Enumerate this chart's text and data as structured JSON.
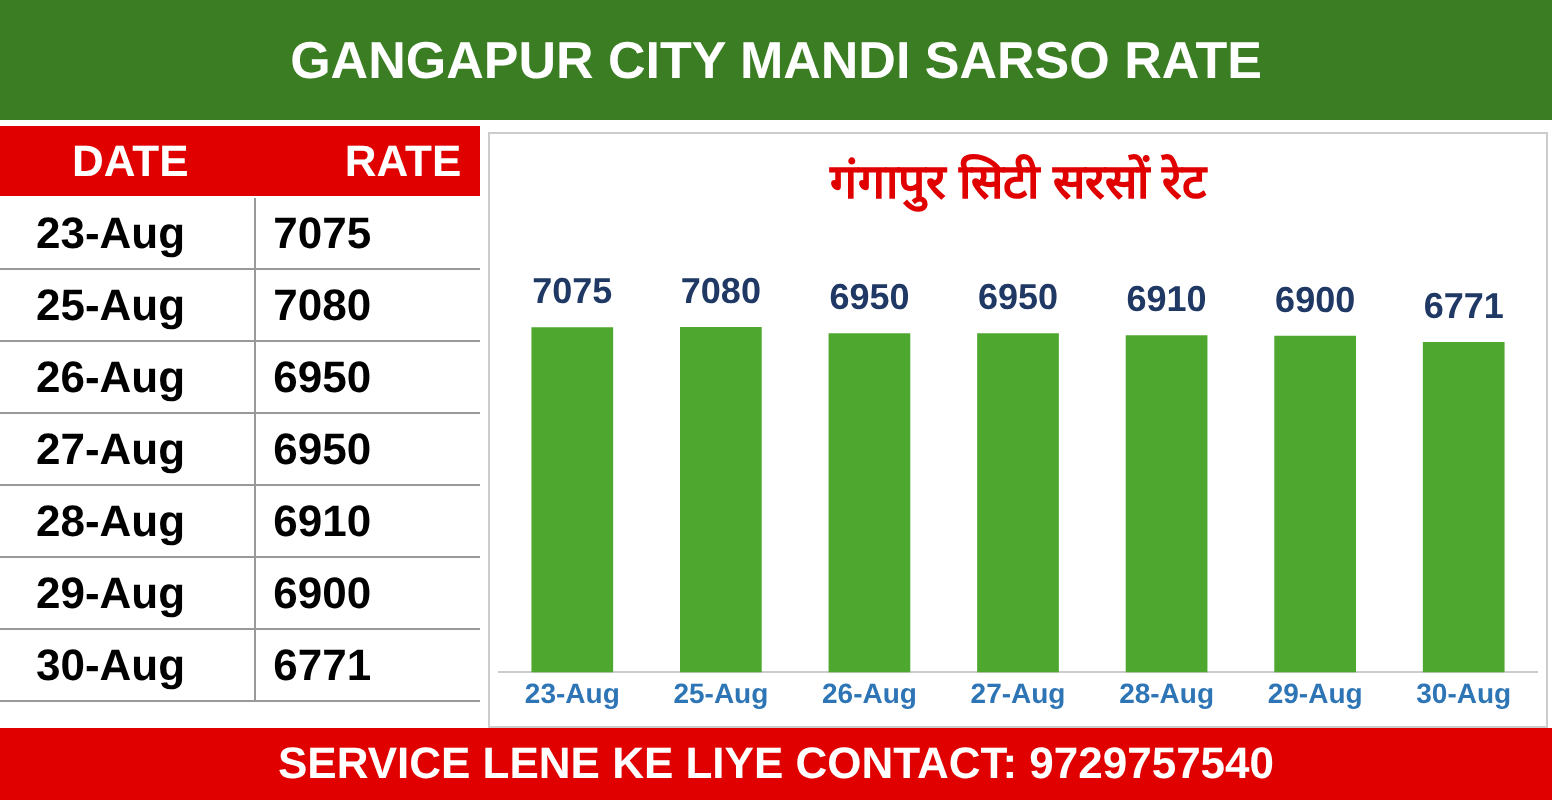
{
  "chart_data": [
    {
      "type": "other",
      "title": "GANGAPUR CITY MANDI SARSO RATE",
      "annotations": [
        "DATE RATE",
        "23-Aug 7075",
        "25-Aug 7080",
        "26-Aug 6950",
        "27-Aug 6950",
        "28-Aug 6910",
        "29-Aug 6900",
        "30-Aug 6771"
      ]
    },
    {
      "type": "bar",
      "title": "गंगापुर सिटी सरसों रेट",
      "categories": [
        "23-Aug",
        "25-Aug",
        "26-Aug",
        "27-Aug",
        "28-Aug",
        "29-Aug",
        "30-Aug"
      ],
      "values": [
        7075,
        7080,
        6950,
        6950,
        6910,
        6900,
        6771
      ],
      "color": "#4ea72e",
      "data_labels": true,
      "grid": false,
      "legend": false,
      "annotations": [
        "SERVICE LENE KE LIYE CONTACT: 9729757540"
      ]
    }
  ]
}
